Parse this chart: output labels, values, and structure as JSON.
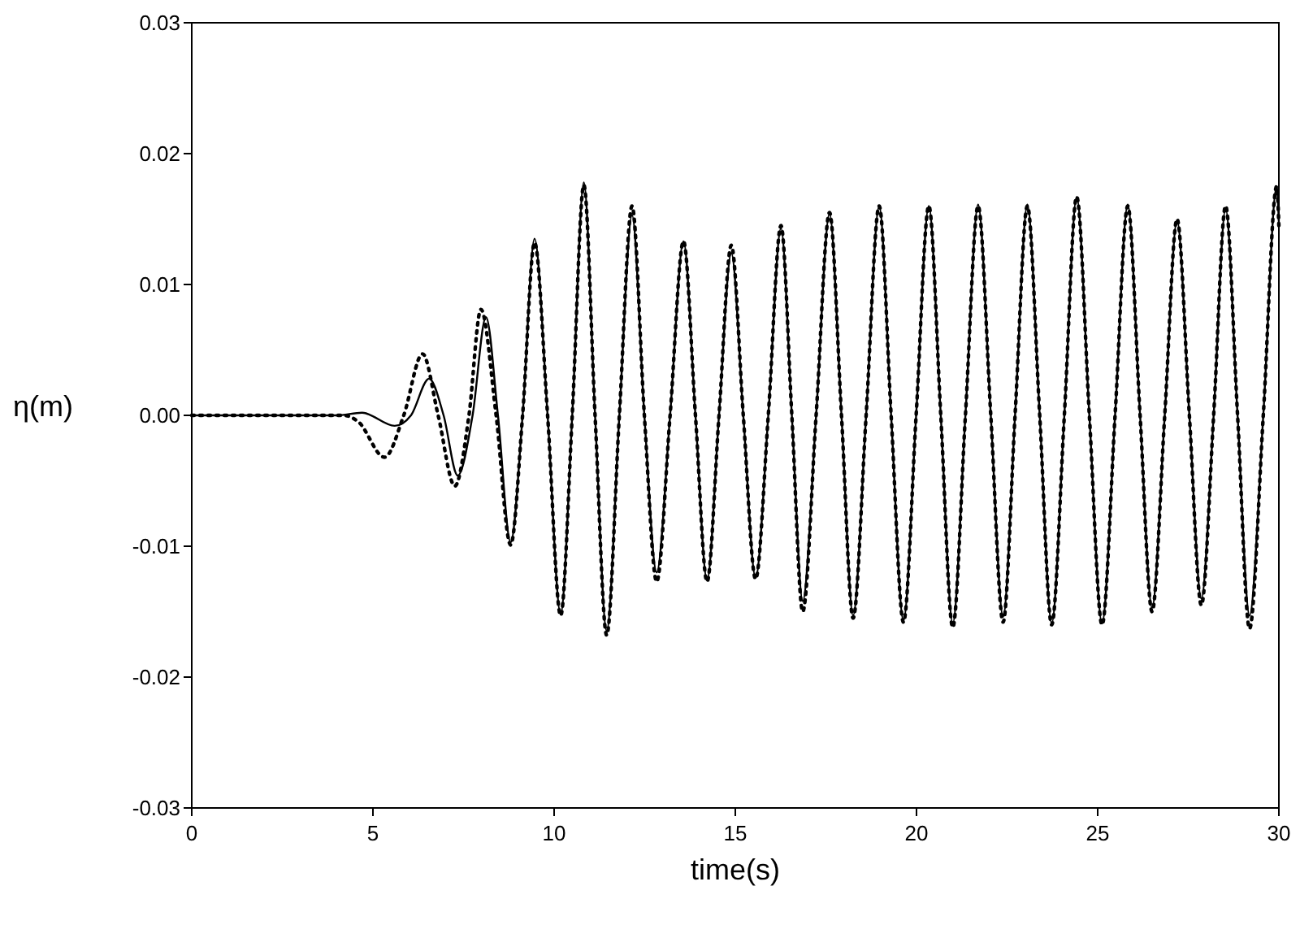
{
  "chart_data": {
    "type": "line",
    "xlabel": "time(s)",
    "ylabel": "η(m)",
    "xlim": [
      0,
      30
    ],
    "xticks": [
      0,
      5,
      10,
      15,
      20,
      25,
      30
    ],
    "ylim": [
      -0.03,
      0.03
    ],
    "yticks": [
      -0.03,
      -0.02,
      -0.01,
      {
        "value": 0,
        "label": "0.00"
      },
      0.01,
      0.02,
      0.03
    ],
    "grid": false,
    "marker": "none",
    "series": [
      {
        "color": "#000000",
        "line_style": "solid",
        "x": [
          0,
          4,
          4.7,
          5.6,
          6.05,
          6.55,
          6.95,
          7.34,
          7.75,
          8.12,
          8.45,
          8.8,
          9.13,
          9.46,
          9.82,
          10.18,
          10.5,
          10.82,
          11.13,
          11.45,
          11.8,
          12.15,
          12.49,
          12.83,
          13.2,
          13.57,
          13.9,
          14.22,
          14.55,
          14.89,
          15.22,
          15.56,
          15.91,
          16.26,
          16.56,
          16.86,
          17.23,
          17.6,
          17.93,
          18.25,
          18.61,
          18.97,
          19.3,
          19.64,
          19.99,
          20.34,
          20.67,
          21.0,
          21.35,
          21.7,
          22.05,
          22.39,
          22.72,
          23.06,
          23.4,
          23.73,
          24.08,
          24.42,
          24.77,
          25.12,
          25.48,
          25.83,
          26.17,
          26.5,
          26.85,
          27.19,
          27.53,
          27.86,
          28.2,
          28.53,
          28.86,
          29.19,
          29.57,
          29.94,
          30
        ],
        "values": [
          0,
          0,
          0.0002,
          -0.0008,
          0,
          0.0028,
          0,
          -0.0046,
          0,
          0.0075,
          0,
          -0.0097,
          0,
          0.0135,
          0,
          -0.0152,
          0,
          0.0178,
          0,
          -0.0165,
          0,
          0.0153,
          0,
          -0.012,
          0,
          0.0133,
          0,
          -0.0126,
          0,
          0.0124,
          0,
          -0.0124,
          0,
          0.0143,
          0,
          -0.0142,
          0,
          0.0154,
          0,
          -0.0153,
          0,
          0.016,
          0,
          -0.0157,
          0,
          0.016,
          0,
          -0.0159,
          0,
          0.0161,
          0,
          -0.0154,
          0,
          0.0161,
          0,
          -0.0159,
          0,
          0.0167,
          0,
          -0.0159,
          0,
          0.0161,
          0,
          -0.0147,
          0,
          0.0149,
          0,
          -0.014,
          0,
          0.0158,
          0,
          -0.0153,
          0,
          0.0175,
          0.0147
        ]
      },
      {
        "color": "#000000",
        "line_style": "dotted",
        "x": [
          0,
          4.2,
          4.6,
          5.32,
          5.85,
          6.37,
          6.8,
          7.26,
          7.65,
          7.98,
          8.4,
          8.8,
          9.13,
          9.46,
          9.82,
          10.18,
          10.5,
          10.82,
          11.13,
          11.45,
          11.8,
          12.15,
          12.49,
          12.83,
          13.2,
          13.57,
          13.9,
          14.22,
          14.55,
          14.89,
          15.22,
          15.56,
          15.91,
          16.26,
          16.56,
          16.86,
          17.23,
          17.6,
          17.93,
          18.25,
          18.61,
          18.97,
          19.3,
          19.64,
          19.99,
          20.34,
          20.67,
          21.0,
          21.35,
          21.7,
          22.05,
          22.39,
          22.72,
          23.06,
          23.4,
          23.73,
          24.08,
          24.42,
          24.77,
          25.12,
          25.48,
          25.83,
          26.17,
          26.5,
          26.85,
          27.19,
          27.53,
          27.86,
          28.2,
          28.53,
          28.86,
          29.19,
          29.57,
          29.94,
          30
        ],
        "values": [
          0,
          0,
          -0.0005,
          -0.0032,
          0,
          0.0047,
          0,
          -0.0054,
          0,
          0.0081,
          0,
          -0.0099,
          0,
          0.0132,
          0,
          -0.0153,
          0,
          0.0176,
          0,
          -0.0168,
          0,
          0.016,
          0,
          -0.0127,
          0,
          0.0133,
          0,
          -0.0127,
          0,
          0.013,
          0,
          -0.0125,
          0,
          0.0145,
          0,
          -0.015,
          0,
          0.0155,
          0,
          -0.0155,
          0,
          0.016,
          0,
          -0.0158,
          0,
          0.016,
          0,
          -0.0162,
          0,
          0.016,
          0,
          -0.0158,
          0,
          0.016,
          0,
          -0.016,
          0,
          0.0167,
          0,
          -0.016,
          0,
          0.016,
          0,
          -0.015,
          0,
          0.015,
          0,
          -0.0145,
          0,
          0.016,
          0,
          -0.0163,
          0,
          0.0175,
          0.0145
        ]
      }
    ]
  }
}
